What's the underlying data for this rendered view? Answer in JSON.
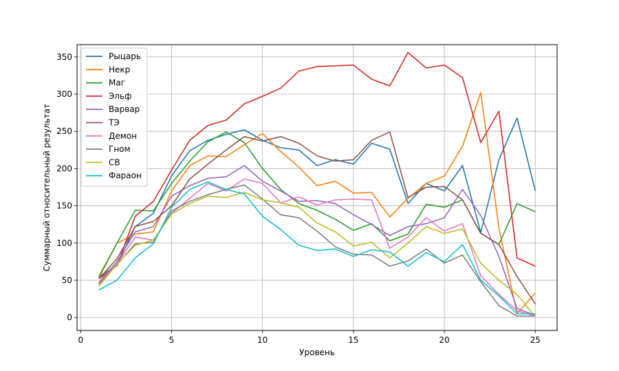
{
  "chart_data": {
    "type": "line",
    "title": "",
    "xlabel": "Уровень",
    "ylabel": "Суммарный относительный результат",
    "xlim": [
      -0.2,
      26.2
    ],
    "ylim": [
      -17.4,
      366.4
    ],
    "xticks": [
      0,
      5,
      10,
      15,
      20,
      25
    ],
    "yticks": [
      0,
      50,
      100,
      150,
      200,
      250,
      300,
      350
    ],
    "grid": true,
    "legend_position": "top-left",
    "x": [
      1,
      2,
      3,
      4,
      5,
      6,
      7,
      8,
      9,
      10,
      11,
      12,
      13,
      14,
      15,
      16,
      17,
      18,
      19,
      20,
      21,
      22,
      23,
      24,
      25
    ],
    "series": [
      {
        "name": "Рыцарь",
        "color": "#1f77b4",
        "values": [
          55,
          70,
          122,
          140,
          190,
          224,
          238,
          246,
          252,
          238,
          228,
          225,
          204,
          212,
          206,
          234,
          226,
          153,
          180,
          170,
          204,
          114,
          212,
          268,
          170
        ]
      },
      {
        "name": "Некр",
        "color": "#ff7f0e",
        "values": [
          53,
          100,
          112,
          115,
          170,
          204,
          217,
          216,
          232,
          247,
          223,
          202,
          177,
          183,
          167,
          168,
          135,
          160,
          180,
          190,
          230,
          302,
          120,
          5,
          33
        ]
      },
      {
        "name": "Маг",
        "color": "#2ca02c",
        "values": [
          55,
          100,
          144,
          143,
          180,
          210,
          236,
          249,
          235,
          200,
          172,
          153,
          144,
          132,
          117,
          126,
          103,
          112,
          152,
          148,
          158,
          113,
          98,
          153,
          142
        ]
      },
      {
        "name": "Эльф",
        "color": "#d62728",
        "values": [
          52,
          70,
          136,
          156,
          198,
          238,
          258,
          265,
          287,
          297,
          308,
          331,
          337,
          338,
          339,
          320,
          311,
          356,
          335,
          339,
          322,
          235,
          277,
          80,
          69
        ]
      },
      {
        "name": "Варвар",
        "color": "#9467bd",
        "values": [
          47,
          75,
          115,
          122,
          163,
          177,
          187,
          189,
          204,
          183,
          170,
          156,
          157,
          153,
          138,
          125,
          110,
          122,
          126,
          134,
          172,
          137,
          82,
          12,
          3
        ]
      },
      {
        "name": "ТЭ",
        "color": "#8c564b",
        "values": [
          52,
          79,
          122,
          129,
          150,
          186,
          206,
          225,
          243,
          237,
          243,
          234,
          217,
          210,
          212,
          238,
          249,
          161,
          175,
          176,
          158,
          113,
          98,
          55,
          18
        ]
      },
      {
        "name": "Демон",
        "color": "#e377c2",
        "values": [
          46,
          72,
          108,
          104,
          140,
          160,
          180,
          170,
          186,
          180,
          154,
          162,
          151,
          158,
          159,
          158,
          93,
          108,
          134,
          116,
          126,
          56,
          31,
          9,
          2
        ]
      },
      {
        "name": "Гном",
        "color": "#7f7f7f",
        "values": [
          45,
          71,
          99,
          101,
          143,
          156,
          165,
          172,
          178,
          159,
          138,
          134,
          116,
          95,
          85,
          84,
          69,
          76,
          92,
          73,
          84,
          48,
          16,
          2,
          2
        ]
      },
      {
        "name": "СВ",
        "color": "#bcbd22",
        "values": [
          42,
          72,
          97,
          104,
          139,
          153,
          163,
          161,
          168,
          158,
          154,
          148,
          127,
          115,
          96,
          101,
          80,
          100,
          122,
          113,
          119,
          73,
          50,
          31,
          1
        ]
      },
      {
        "name": "Фараон",
        "color": "#17becf",
        "values": [
          37,
          50,
          80,
          99,
          148,
          172,
          182,
          172,
          166,
          136,
          118,
          97,
          90,
          92,
          82,
          91,
          88,
          69,
          87,
          75,
          98,
          50,
          29,
          5,
          5
        ]
      }
    ]
  }
}
